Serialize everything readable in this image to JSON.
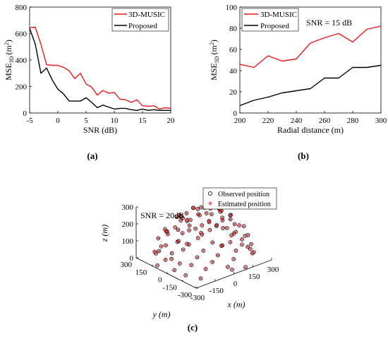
{
  "panel_labels": [
    "(a)",
    "(b)",
    "(c)"
  ],
  "colors": {
    "red_series": "#e8191a",
    "black_series": "#000000",
    "axis": "#000000"
  },
  "chart_data": [
    {
      "type": "line",
      "xlabel": "SNR (dB)",
      "ylabel_main": "MSE",
      "ylabel_sub": "3D",
      "ylabel_units_pre": "(m",
      "ylabel_units_sup": "2",
      "ylabel_units_post": ")",
      "xlim": [
        -5,
        20
      ],
      "ylim": [
        0,
        800
      ],
      "xticks": [
        -5,
        0,
        5,
        10,
        15,
        20
      ],
      "yticks": [
        0,
        200,
        400,
        600,
        800
      ],
      "legend_position": "top-right",
      "series": [
        {
          "name": "3D-MUSIC",
          "color": "#e8191a",
          "x": [
            -5,
            -4,
            -3,
            -2,
            -1,
            0,
            1,
            2,
            3,
            4,
            5,
            6,
            7,
            8,
            9,
            10,
            11,
            12,
            13,
            14,
            15,
            16,
            17,
            18,
            19,
            20
          ],
          "y": [
            645,
            648,
            520,
            365,
            360,
            360,
            345,
            320,
            260,
            300,
            220,
            195,
            135,
            170,
            150,
            155,
            105,
            100,
            80,
            100,
            55,
            50,
            55,
            30,
            40,
            35
          ]
        },
        {
          "name": "Proposed",
          "color": "#000000",
          "x": [
            -5,
            -4,
            -3,
            -2,
            -1,
            0,
            1,
            2,
            3,
            4,
            5,
            6,
            7,
            8,
            9,
            10,
            11,
            12,
            13,
            14,
            15,
            16,
            17,
            18,
            19,
            20
          ],
          "y": [
            640,
            520,
            300,
            340,
            250,
            180,
            145,
            90,
            90,
            90,
            115,
            80,
            40,
            60,
            45,
            30,
            35,
            35,
            25,
            20,
            30,
            20,
            25,
            20,
            20,
            20
          ]
        }
      ]
    },
    {
      "type": "line",
      "xlabel": "Radial distance (m)",
      "ylabel_main": "MSE",
      "ylabel_sub": "3D",
      "ylabel_units_pre": "(m",
      "ylabel_units_sup": "2",
      "ylabel_units_post": ")",
      "xlim": [
        200,
        300
      ],
      "ylim": [
        0,
        100
      ],
      "xticks": [
        200,
        220,
        240,
        260,
        280,
        300
      ],
      "yticks": [
        0,
        20,
        40,
        60,
        80,
        100
      ],
      "annotation": "SNR = 15 dB",
      "legend_position": "top-left",
      "series": [
        {
          "name": "3D-MUSIC",
          "color": "#e8191a",
          "x": [
            200,
            210,
            220,
            230,
            240,
            250,
            260,
            270,
            280,
            290,
            300
          ],
          "y": [
            46,
            43,
            54,
            49,
            51,
            66,
            71,
            75,
            67,
            79,
            82
          ]
        },
        {
          "name": "Proposed",
          "color": "#000000",
          "x": [
            200,
            210,
            220,
            230,
            240,
            250,
            260,
            270,
            280,
            290,
            300
          ],
          "y": [
            7,
            12,
            15,
            19,
            21,
            23,
            33,
            33,
            43,
            43,
            45
          ]
        }
      ]
    },
    {
      "type": "scatter",
      "projection": "3d",
      "annotation": "SNR = 20dB",
      "xlabel": "x (m)",
      "ylabel": "y (m)",
      "zlabel": "z (m)",
      "xlim": [
        -300,
        300
      ],
      "ylim": [
        -300,
        300
      ],
      "zlim": [
        0,
        300
      ],
      "xticks": [
        -300,
        -150,
        0,
        150,
        300
      ],
      "yticks": [
        -300,
        -150,
        0,
        150,
        300
      ],
      "zticks": [
        0,
        100,
        200,
        300
      ],
      "legend_position": "top-right",
      "series": [
        {
          "name": "Observed position",
          "marker": "circle-open",
          "color": "#000000",
          "points": [
            [
              10,
              5,
              297
            ],
            [
              -25,
              30,
              292
            ],
            [
              40,
              -15,
              291
            ],
            [
              -60,
              -20,
              286
            ],
            [
              70,
              40,
              284
            ],
            [
              5,
              -70,
              283
            ],
            [
              -90,
              60,
              276
            ],
            [
              -10,
              95,
              275
            ],
            [
              100,
              -50,
              270
            ],
            [
              -115,
              -10,
              265
            ],
            [
              55,
              -115,
              262
            ],
            [
              -45,
              -110,
              262
            ],
            [
              130,
              10,
              256
            ],
            [
              -140,
              55,
              249
            ],
            [
              25,
              135,
              253
            ],
            [
              -20,
              -150,
              245
            ],
            [
              150,
              -80,
              241
            ],
            [
              -165,
              -60,
              232
            ],
            [
              90,
              140,
              237
            ],
            [
              -100,
              145,
              231
            ],
            [
              175,
              60,
              225
            ],
            [
              -55,
              175,
              221
            ],
            [
              45,
              -175,
              222
            ],
            [
              -185,
              25,
              215
            ],
            [
              190,
              -25,
              212
            ],
            [
              130,
              -145,
              212
            ],
            [
              -150,
              -130,
              203
            ],
            [
              -30,
              195,
              203
            ],
            [
              210,
              100,
              190
            ],
            [
              -205,
              110,
              185
            ],
            [
              75,
              -205,
              190
            ],
            [
              -90,
              -200,
              181
            ],
            [
              160,
              175,
              172
            ],
            [
              -225,
              -30,
              176
            ],
            [
              230,
              -110,
              162
            ],
            [
              15,
              230,
              167
            ],
            [
              -165,
              170,
              158
            ],
            [
              235,
              30,
              159
            ],
            [
              -40,
              -235,
              161
            ],
            [
              120,
              -230,
              150
            ],
            [
              -240,
              -95,
              150
            ],
            [
              180,
              -185,
              141
            ],
            [
              -130,
              225,
              144
            ],
            [
              265,
              -20,
              130
            ],
            [
              -255,
              60,
              133
            ],
            [
              70,
              255,
              135
            ],
            [
              -95,
              -260,
              125
            ],
            [
              255,
              135,
              116
            ],
            [
              -205,
              -190,
              123
            ],
            [
              200,
              200,
              108
            ],
            [
              -270,
              -20,
              114
            ],
            [
              40,
              -270,
              118
            ],
            [
              -180,
              230,
              102
            ],
            [
              150,
              -250,
              104
            ],
            [
              -10,
              275,
              107
            ],
            [
              275,
              -95,
              92
            ],
            [
              -270,
              110,
              88
            ],
            [
              -135,
              -255,
              95
            ],
            [
              100,
              270,
              88
            ],
            [
              245,
              180,
              77
            ],
            [
              -235,
              -170,
              80
            ],
            [
              10,
              -285,
              81
            ],
            [
              -60,
              285,
              77
            ],
            [
              285,
              40,
              68
            ],
            [
              -285,
              25,
              66
            ],
            [
              190,
              -225,
              72
            ],
            [
              -180,
              -245,
              63
            ],
            [
              140,
              260,
              62
            ],
            [
              -250,
              165,
              52
            ],
            [
              265,
              -140,
              55
            ],
            [
              -40,
              -290,
              50
            ],
            [
              60,
              290,
              48
            ],
            [
              -220,
              215,
              38
            ],
            [
              230,
              -210,
              38
            ],
            [
              -290,
              -70,
              35
            ],
            [
              290,
              90,
              31
            ],
            [
              -10,
              -295,
              27
            ],
            [
              -120,
              275,
              25
            ],
            [
              180,
              245,
              20
            ],
            [
              -260,
              -145,
              18
            ],
            [
              250,
              -170,
              14
            ],
            [
              -290,
              100,
              12
            ],
            [
              100,
              -290,
              10
            ],
            [
              20,
              290,
              8
            ],
            [
              -200,
              -220,
              6
            ],
            [
              295,
              -10,
              5
            ],
            [
              -160,
              40,
              5
            ],
            [
              80,
              120,
              140
            ],
            [
              -70,
              -60,
              190
            ],
            [
              30,
              80,
              225
            ],
            [
              120,
              -40,
              160
            ],
            [
              -110,
              30,
              110
            ],
            [
              60,
              -100,
              90
            ],
            [
              -20,
              -20,
              60
            ],
            [
              0,
              150,
              40
            ],
            [
              -210,
              60,
              40
            ],
            [
              210,
              0,
              40
            ],
            [
              150,
              80,
              250
            ],
            [
              -80,
              -160,
              240
            ],
            [
              -150,
              -20,
              270
            ]
          ]
        },
        {
          "name": "Estimated position",
          "marker": "plus",
          "color": "#e8191a",
          "same_as": "Observed position"
        }
      ]
    }
  ]
}
